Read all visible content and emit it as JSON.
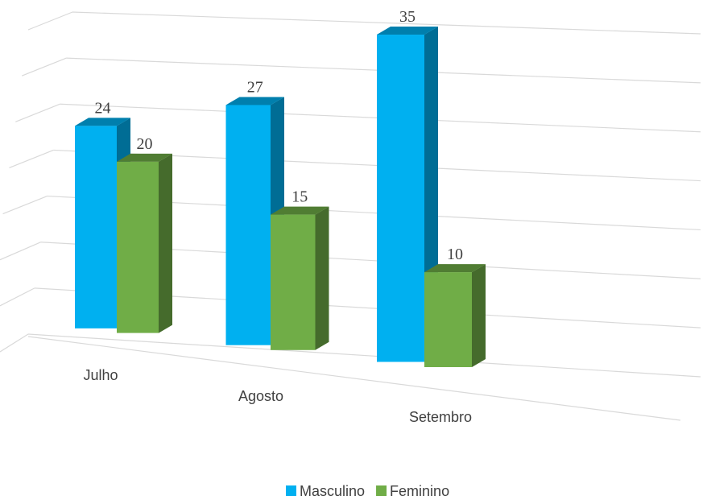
{
  "chart_data": {
    "type": "bar3d",
    "categories": [
      "Julho",
      "Agosto",
      "Setembro"
    ],
    "series": [
      {
        "name": "Masculino",
        "color": "#00b0f0",
        "values": [
          24,
          27,
          35
        ]
      },
      {
        "name": "Feminino",
        "color": "#70ad47",
        "values": [
          20,
          15,
          10
        ]
      }
    ],
    "ylim": [
      0,
      35
    ],
    "yticks": [
      0,
      5,
      10,
      15,
      20,
      25,
      30,
      35
    ],
    "grid": true,
    "legend": "bottom"
  }
}
